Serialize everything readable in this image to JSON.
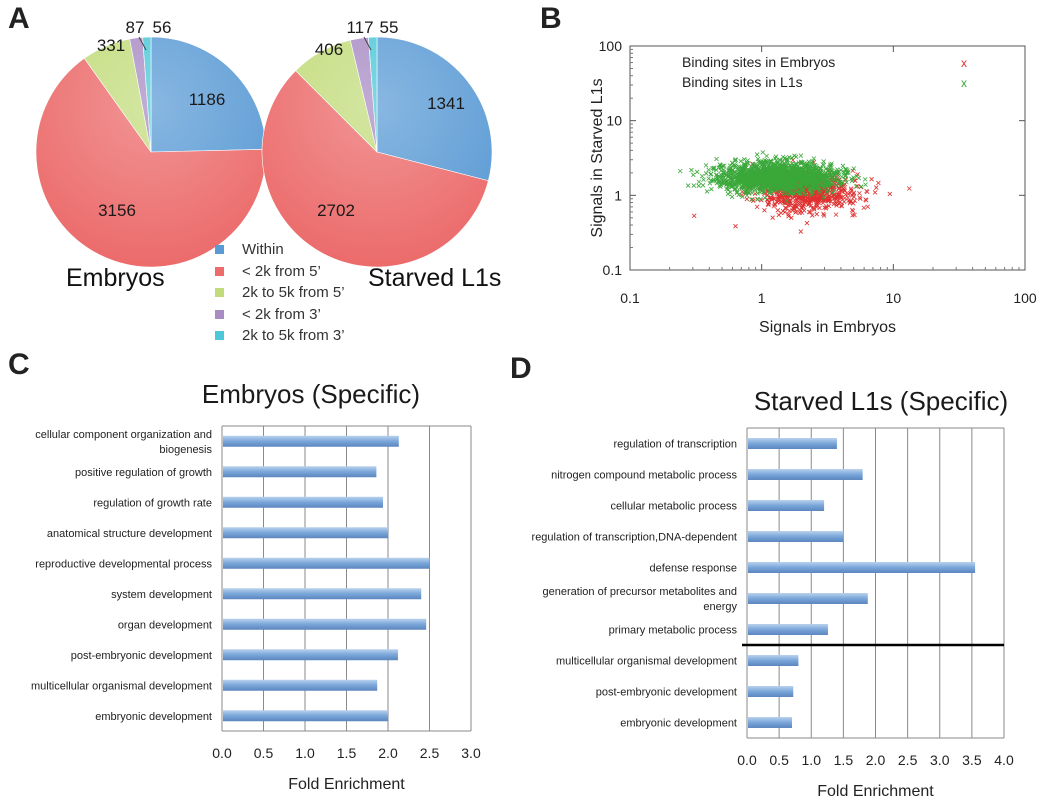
{
  "panels": {
    "a": "A",
    "b": "B",
    "c": "C",
    "d": "D"
  },
  "colors": {
    "within": "#5b9bd5",
    "lt2k5": "#ec6b6b",
    "k2to5k5": "#c2dc7c",
    "lt2k3": "#a88cc4",
    "k2to5k3": "#4ec7d8",
    "bar": "#7aa6d9",
    "embryos_points": "#e03030",
    "l1_points": "#3aa83a"
  },
  "chart_data": [
    {
      "type": "pie",
      "id": "pie_embryos",
      "label": "Embryos",
      "categories": [
        "Within",
        "< 2k from 5’",
        "2k to 5k from 5’",
        "< 2k from 3’",
        "2k to 5k from 3’"
      ],
      "values": [
        1186,
        3156,
        331,
        87,
        56
      ],
      "legend": [
        "Within",
        "< 2k from 5’",
        "2k to 5k from 5’",
        "< 2k from 3’",
        "2k to 5k from 3’"
      ]
    },
    {
      "type": "pie",
      "id": "pie_l1",
      "label": "Starved L1s",
      "categories": [
        "Within",
        "< 2k from 5’",
        "2k to 5k from 5’",
        "< 2k from 3’",
        "2k to 5k from 3’"
      ],
      "values": [
        1341,
        2702,
        406,
        117,
        55
      ]
    },
    {
      "type": "scatter",
      "id": "scatter_b",
      "xlabel": "Signals in Embryos",
      "ylabel": "Signals in Starved L1s",
      "xscale": "log",
      "yscale": "log",
      "xlim": [
        0.1,
        100
      ],
      "ylim": [
        0.1,
        100
      ],
      "xticks": [
        "0.1",
        "1",
        "10",
        "100"
      ],
      "yticks": [
        "0.1",
        "1",
        "10",
        "100"
      ],
      "legend_position": "top-right",
      "series": [
        {
          "name": "Binding sites in Embryos",
          "marker": "x",
          "center": [
            2.2,
            1.1
          ],
          "spread": [
            0.2,
            0.13
          ],
          "n": 700
        },
        {
          "name": "Binding sites in L1s",
          "marker": "x",
          "center": [
            1.3,
            1.75
          ],
          "spread": [
            0.23,
            0.1
          ],
          "n": 1500
        }
      ]
    },
    {
      "type": "bar",
      "id": "bars_c",
      "orientation": "horizontal",
      "title": "Embryos (Specific)",
      "xlabel": "Fold Enrichment",
      "xlim": [
        0,
        3.0
      ],
      "xticks": [
        "0.0",
        "0.5",
        "1.0",
        "1.5",
        "2.0",
        "2.5",
        "3.0"
      ],
      "categories": [
        "cellular component organization and biogenesis",
        "positive regulation of growth",
        "regulation of growth rate",
        "anatomical structure development",
        "reproductive developmental process",
        "system development",
        "organ development",
        "post-embryonic development",
        "multicellular organismal development",
        "embryonic development"
      ],
      "values": [
        2.13,
        1.86,
        1.94,
        2.0,
        2.5,
        2.4,
        2.46,
        2.12,
        1.87,
        2.0
      ]
    },
    {
      "type": "bar",
      "id": "bars_d",
      "orientation": "horizontal",
      "title": "Starved L1s (Specific)",
      "xlabel": "Fold Enrichment",
      "xlim": [
        0,
        4.0
      ],
      "xticks": [
        "0.0",
        "0.5",
        "1.0",
        "1.5",
        "2.0",
        "2.5",
        "3.0",
        "3.5",
        "4.0"
      ],
      "categories": [
        "regulation of transcription",
        "nitrogen compound metabolic process",
        "cellular metabolic process",
        "regulation of transcription,DNA-dependent",
        "defense response",
        "generation of precursor metabolites and energy",
        "primary metabolic process",
        "multicellular organismal development",
        "post-embryonic development",
        "embryonic development"
      ],
      "values": [
        1.4,
        1.8,
        1.2,
        1.5,
        3.55,
        1.88,
        1.26,
        0.8,
        0.72,
        0.7
      ],
      "separator_after_index": 6
    }
  ]
}
